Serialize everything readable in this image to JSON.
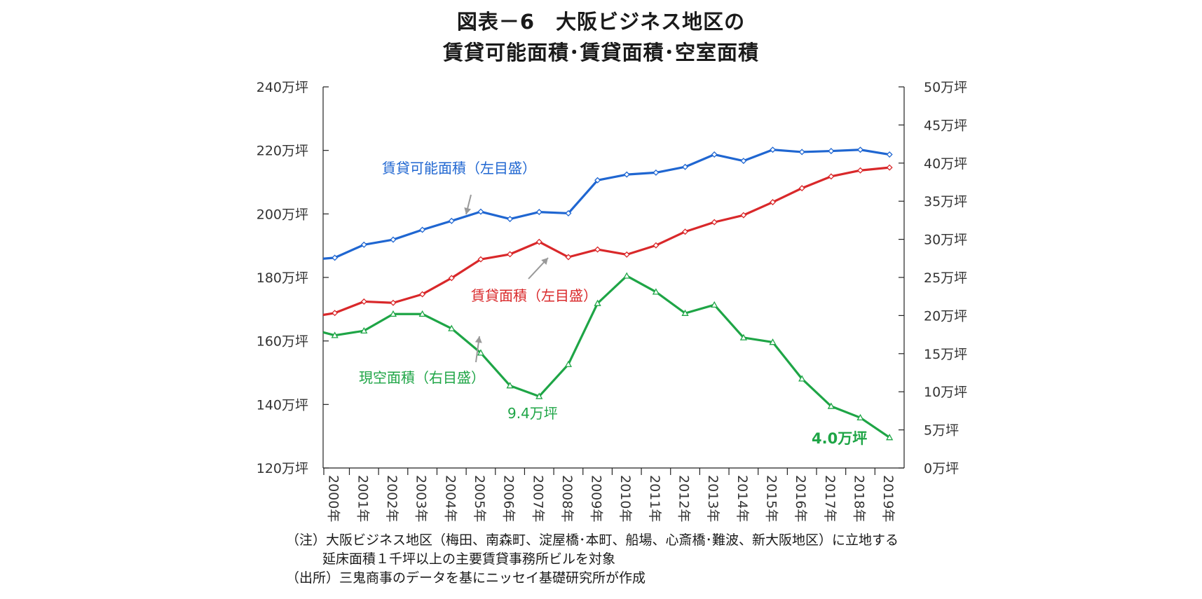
{
  "title": {
    "line1": "図表－6　大阪ビジネス地区の",
    "line2": "賃貸可能面積･賃貸面積･空室面積"
  },
  "notes": {
    "note1": "（注）大阪ビジネス地区（梅田、南森町、淀屋橋･本町、船場、心斎橋･難波、新大阪地区）に立地する",
    "note2": "延床面積１千坪以上の主要賃貸事務所ビルを対象",
    "source": "（出所）三鬼商事のデータを基にニッセイ基礎研究所が作成"
  },
  "chart_data": {
    "type": "line",
    "x": [
      "2000年",
      "2001年",
      "2002年",
      "2003年",
      "2004年",
      "2005年",
      "2006年",
      "2007年",
      "2008年",
      "2009年",
      "2010年",
      "2011年",
      "2012年",
      "2013年",
      "2014年",
      "2015年",
      "2016年",
      "2017年",
      "2018年",
      "2019年"
    ],
    "x_values": [
      1999.6,
      2000,
      2001,
      2002,
      2003,
      2004,
      2005,
      2006,
      2007,
      2008,
      2009,
      2010,
      2011,
      2012,
      2013,
      2014,
      2015,
      2016,
      2017,
      2018,
      2019
    ],
    "left_axis": {
      "ylim": [
        120,
        240
      ],
      "ticks": [
        120,
        140,
        160,
        180,
        200,
        220,
        240
      ],
      "tick_labels": [
        "120万坪",
        "140万坪",
        "160万坪",
        "180万坪",
        "200万坪",
        "220万坪",
        "240万坪"
      ]
    },
    "right_axis": {
      "ylim": [
        0,
        50
      ],
      "ticks": [
        0,
        5,
        10,
        15,
        20,
        25,
        30,
        35,
        40,
        45,
        50
      ],
      "tick_labels": [
        "0万坪",
        "5万坪",
        "10万坪",
        "15万坪",
        "20万坪",
        "25万坪",
        "30万坪",
        "35万坪",
        "40万坪",
        "45万坪",
        "50万坪"
      ]
    },
    "series": [
      {
        "name": "賃貸可能面積（左目盛）",
        "axis": "left",
        "color": "#1f66d1",
        "marker": "diamond",
        "values": [
          185.9,
          186.2,
          190.3,
          191.9,
          195.0,
          197.8,
          200.7,
          198.4,
          200.6,
          200.2,
          210.6,
          212.4,
          213.0,
          214.8,
          218.7,
          216.7,
          220.2,
          219.5,
          219.8,
          220.2,
          218.7
        ]
      },
      {
        "name": "賃貸面積（左目盛）",
        "axis": "left",
        "color": "#d9282a",
        "marker": "diamond",
        "values": [
          168.2,
          168.8,
          172.4,
          172.0,
          174.7,
          179.8,
          185.7,
          187.3,
          191.2,
          186.4,
          188.8,
          187.2,
          190.1,
          194.4,
          197.4,
          199.6,
          203.7,
          208.1,
          211.8,
          213.7,
          214.6
        ]
      },
      {
        "name": "現空面積（右目盛）",
        "axis": "right",
        "color": "#1ea546",
        "marker": "triangle",
        "values": [
          17.8,
          17.4,
          18.0,
          20.2,
          20.2,
          18.3,
          15.1,
          10.8,
          9.4,
          13.6,
          21.6,
          25.2,
          23.1,
          20.3,
          21.4,
          17.1,
          16.5,
          11.7,
          8.1,
          6.6,
          4.0
        ]
      }
    ],
    "annotations": {
      "label_blue": "賃貸可能面積（左目盛）",
      "label_red": "賃貸面積（左目盛）",
      "label_green": "現空面積（右目盛）",
      "min_label": "9.4万坪",
      "last_label": "4.0万坪"
    },
    "grid": false,
    "legend": "none"
  }
}
